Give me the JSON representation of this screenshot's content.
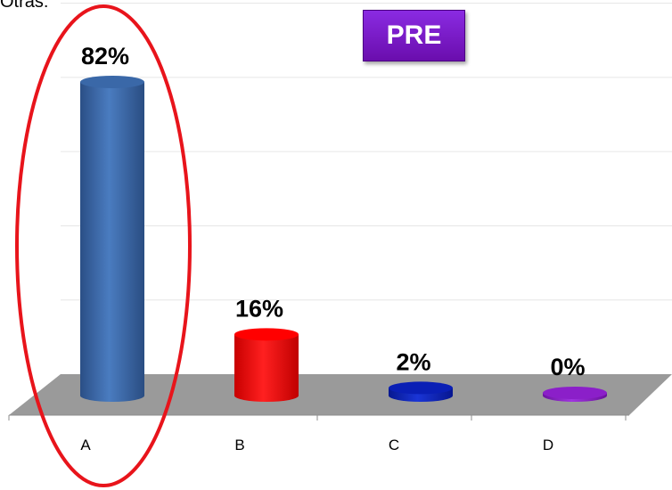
{
  "corner_text": "Otras:",
  "badge": "PRE",
  "colors": {
    "bar_A": "#3a68a8",
    "bar_B": "#ff0000",
    "bar_C": "#0a1fb5",
    "bar_D": "#8b1fc9",
    "floor": "#9a9a9a",
    "highlight_ellipse": "#e8141b",
    "badge": "#7a1fd0"
  },
  "chart_data": {
    "type": "bar",
    "categories": [
      "A",
      "B",
      "C",
      "D"
    ],
    "values": [
      82,
      16,
      2,
      0
    ],
    "data_labels": [
      "82%",
      "16%",
      "2%",
      "0%"
    ],
    "title": "",
    "xlabel": "",
    "ylabel": "",
    "ylim": [
      0,
      100
    ],
    "grid": true,
    "highlighted_category": "A"
  }
}
